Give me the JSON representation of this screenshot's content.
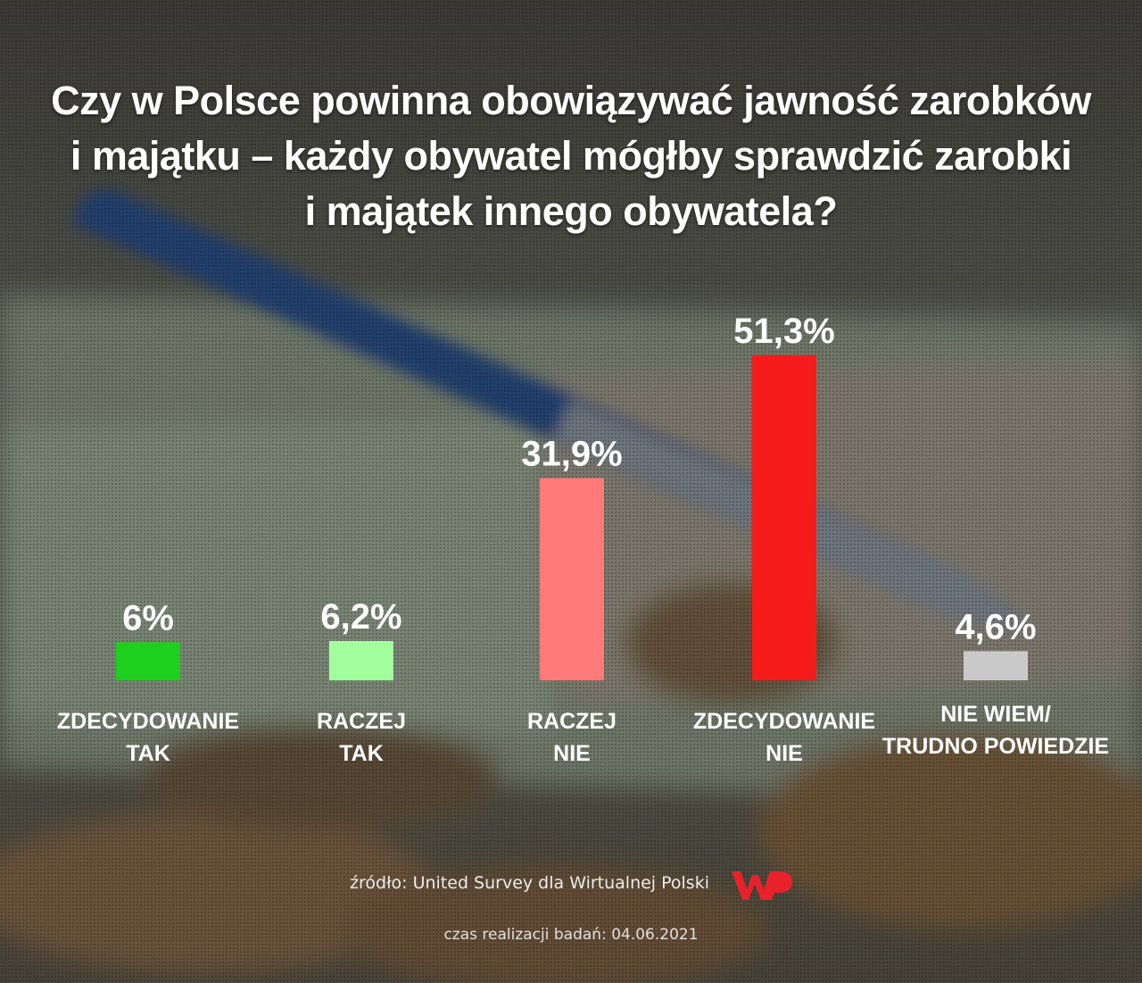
{
  "title_lines": [
    "Czy w Polsce powinna obowiązywać jawność zarobków",
    "i majątku – każdy obywatel mógłby sprawdzić zarobki",
    "i majątek innego obywatela?"
  ],
  "chart_data": {
    "type": "bar",
    "title": "Czy w Polsce powinna obowiązywać jawność zarobków i majątku – każdy obywatel mógłby sprawdzić zarobki i majątek innego obywatela?",
    "unit": "%",
    "categories": [
      [
        "ZDECYDOWANIE",
        "TAK"
      ],
      [
        "RACZEJ",
        "TAK"
      ],
      [
        "RACZEJ",
        "NIE"
      ],
      [
        "ZDECYDOWANIE",
        "NIE"
      ],
      [
        "NIE WIEM/",
        "TRUDNO POWIEDZIE"
      ]
    ],
    "values": [
      6.0,
      6.2,
      31.9,
      51.3,
      4.6
    ],
    "value_labels": [
      "6%",
      "6,2%",
      "31,9%",
      "51,3%",
      "4,6%"
    ],
    "colors": [
      "#1ed01e",
      "#a1ff9c",
      "#ff7a78",
      "#f51b1b",
      "#c9c9c9"
    ],
    "xlabel": "",
    "ylabel": "",
    "grid": false,
    "legend": "none"
  },
  "footer": {
    "source": "źródło: United Survey dla Wirtualnej Polski",
    "date": "czas realizacji badań: 04.06.2021",
    "logo": "WP",
    "logo_color": "#e8212b"
  }
}
